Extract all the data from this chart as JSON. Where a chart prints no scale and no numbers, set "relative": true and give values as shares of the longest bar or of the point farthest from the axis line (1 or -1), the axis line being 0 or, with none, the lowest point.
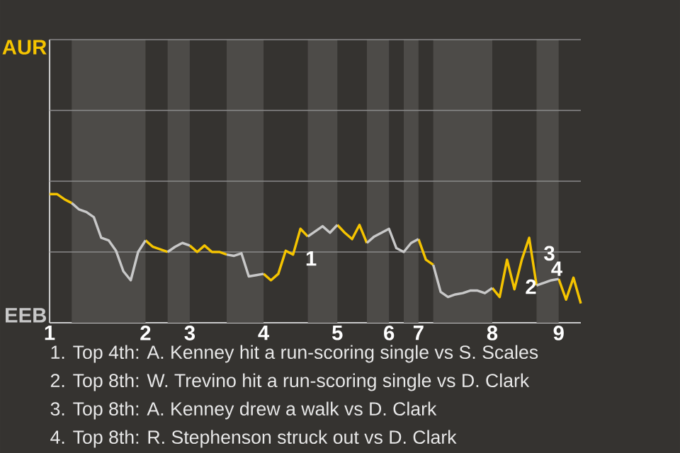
{
  "chart_data": {
    "type": "line",
    "relative": true,
    "categories": [
      "1",
      null,
      null,
      null,
      null,
      null,
      null,
      null,
      null,
      null,
      null,
      null,
      null,
      "2",
      null,
      null,
      null,
      null,
      null,
      "3",
      null,
      null,
      null,
      null,
      null,
      null,
      null,
      null,
      null,
      "4",
      null,
      null,
      null,
      null,
      null,
      null,
      null,
      null,
      null,
      "5",
      null,
      null,
      null,
      null,
      null,
      null,
      "6",
      null,
      null,
      null,
      "7",
      null,
      null,
      null,
      null,
      null,
      null,
      null,
      null,
      null,
      "8",
      null,
      null,
      null,
      null,
      null,
      null,
      null,
      null,
      "9",
      null,
      null,
      null
    ],
    "series": [
      {
        "color": "#f5c400",
        "values": [
          1,
          1,
          0.96,
          0.93,
          null,
          null,
          null,
          null,
          null,
          null,
          null,
          null,
          null,
          0.64,
          0.59,
          0.57,
          0.55,
          null,
          null,
          0.6,
          0.55,
          0.6,
          0.55,
          0.55,
          0.53,
          null,
          null,
          null,
          null,
          0.38,
          0.33,
          0.38,
          0.56,
          0.53,
          0.73,
          0.67,
          null,
          null,
          null,
          0.76,
          0.7,
          0.65,
          0.76,
          0.62,
          null,
          null,
          null,
          null,
          null,
          null,
          0.65,
          0.49,
          0.45,
          null,
          null,
          null,
          null,
          null,
          null,
          null,
          0.27,
          0.2,
          0.49,
          0.26,
          0.49,
          0.66,
          0.29,
          null,
          null,
          0.34,
          0.18,
          0.35,
          0.15
        ]
      },
      {
        "color": "#c8c8c8",
        "values": [
          null,
          null,
          null,
          0.93,
          0.88,
          0.86,
          0.82,
          0.66,
          0.64,
          0.56,
          0.4,
          0.33,
          0.55,
          0.64,
          null,
          null,
          0.55,
          0.59,
          0.62,
          0.6,
          null,
          null,
          null,
          null,
          0.53,
          0.52,
          0.54,
          0.36,
          0.37,
          0.38,
          null,
          null,
          null,
          null,
          null,
          0.67,
          0.71,
          0.75,
          0.7,
          0.76,
          null,
          null,
          null,
          0.62,
          0.67,
          0.7,
          0.73,
          0.58,
          0.55,
          0.62,
          0.65,
          null,
          0.45,
          0.24,
          0.2,
          0.22,
          0.23,
          0.25,
          0.25,
          0.23,
          0.27,
          null,
          null,
          null,
          null,
          null,
          0.29,
          0.31,
          0.33,
          0.34,
          null,
          null,
          null
        ]
      }
    ],
    "ref_lines": [
      {
        "axis": "y",
        "value": 0.55,
        "color": "#8a8a8a"
      },
      {
        "axis": "y",
        "value": 1.1,
        "color": "#8a8a8a"
      },
      {
        "axis": "y",
        "value": 1.65,
        "color": "#8a8a8a"
      },
      {
        "axis": "y",
        "value": 2.2,
        "color": "#8a8a8a"
      }
    ],
    "annotations": [
      "AUR",
      "EEB",
      "1",
      "2",
      "3",
      "4",
      "1. Top 4th: A. Kenney hit a run-scoring single vs S. Scales",
      "2. Top 8th: W. Trevino hit a run-scoring single vs D. Clark",
      "3. Top 8th: A. Kenney drew a walk vs D. Clark",
      "4. Top 8th: R. Stephenson struck out vs D. Clark"
    ]
  }
}
